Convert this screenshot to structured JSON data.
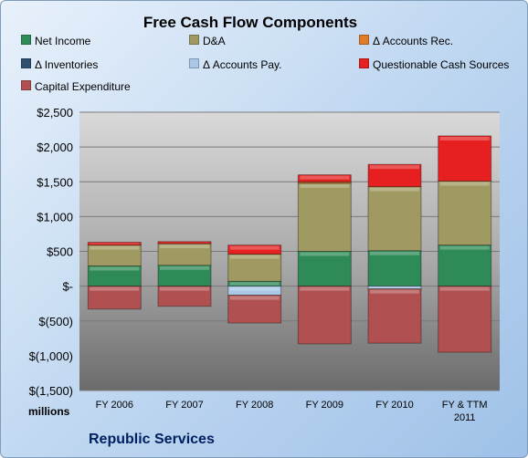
{
  "chart_data": {
    "type": "bar",
    "stacked": true,
    "title": "Free Cash Flow Components",
    "categories": [
      "FY 2006",
      "FY 2007",
      "FY 2008",
      "FY 2009",
      "FY 2010",
      "FY & TTM 2011"
    ],
    "category_lines": [
      [
        "FY 2006"
      ],
      [
        "FY 2007"
      ],
      [
        "FY 2008"
      ],
      [
        "FY 2009"
      ],
      [
        "FY 2010"
      ],
      [
        "FY & TTM",
        "2011"
      ]
    ],
    "series": [
      {
        "name": "Net Income",
        "color": "#2e8b57",
        "values": [
          290,
          300,
          70,
          500,
          510,
          590
        ]
      },
      {
        "name": "D&A",
        "color": "#a09a62",
        "values": [
          300,
          310,
          390,
          980,
          920,
          920
        ]
      },
      {
        "name": "Δ Accounts Rec.",
        "color": "#e07b28",
        "values": [
          0,
          0,
          0,
          20,
          0,
          0
        ]
      },
      {
        "name": "Δ Inventories",
        "color": "#2f4f6f",
        "values": [
          0,
          0,
          0,
          0,
          0,
          0
        ]
      },
      {
        "name": "Δ Accounts Pay.",
        "color": "#a9c8e8",
        "values": [
          0,
          0,
          -130,
          0,
          -40,
          0
        ]
      },
      {
        "name": "Questionable Cash Sources",
        "color": "#e62020",
        "values": [
          40,
          30,
          130,
          100,
          320,
          650
        ]
      },
      {
        "name": "Capital Expenditure",
        "color": "#b05050",
        "values": [
          -330,
          -290,
          -400,
          -830,
          -780,
          -950
        ]
      }
    ],
    "yticks": [
      "$2,500",
      "$2,000",
      "$1,500",
      "$1,000",
      "$500",
      "$-",
      "$(500)",
      "$(1,000)",
      "$(1,500)"
    ],
    "ylim": [
      -1500,
      2500
    ],
    "grid": true,
    "legend_position": "top"
  },
  "labels": {
    "units": "millions",
    "company": "Republic Services"
  }
}
